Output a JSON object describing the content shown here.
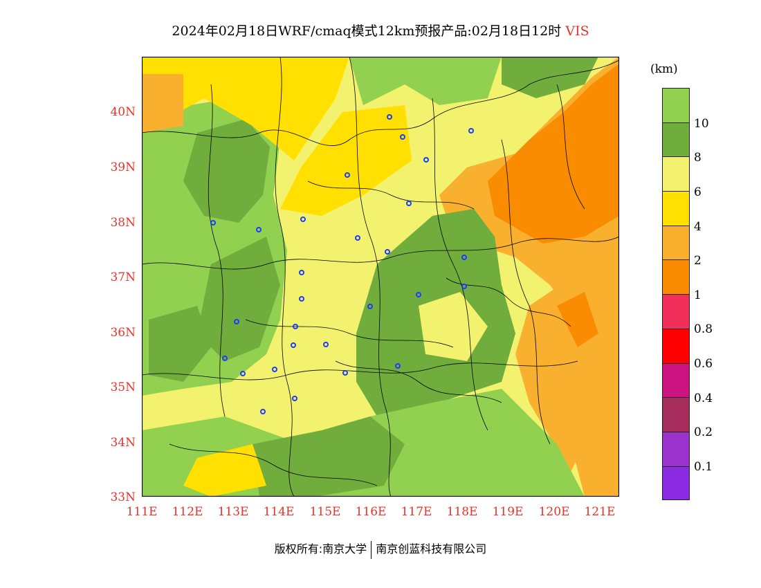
{
  "title": {
    "main": "2024年02月18日WRF/cmaq模式12km预报产品:02月18日12时",
    "variable": "VIS"
  },
  "map": {
    "lat_labels": [
      "40N",
      "39N",
      "38N",
      "37N",
      "36N",
      "35N",
      "34N",
      "33N"
    ],
    "lon_labels": [
      "111E",
      "112E",
      "113E",
      "114E",
      "115E",
      "116E",
      "117E",
      "118E",
      "119E",
      "120E",
      "121E"
    ],
    "colors": {
      "light_green": "#92d050",
      "dark_green": "#70ad3c",
      "pale_yellow": "#f2f26e",
      "yellow": "#ffe000",
      "light_orange": "#f9b02e",
      "orange": "#f98c00",
      "pink_red": "#f0305a",
      "red": "#ff0000",
      "magenta": "#cc1480",
      "maroon": "#a62c5c",
      "purple": "#9933cc",
      "violet": "#8a2be2",
      "city_marker": "#1a3cff",
      "boundary": "#000000"
    }
  },
  "legend": {
    "unit": "(km)",
    "labels": [
      "10",
      "8",
      "6",
      "4",
      "2",
      "1",
      "0.8",
      "0.6",
      "0.4",
      "0.2",
      "0.1"
    ],
    "bins": [
      {
        "color": "#92d050"
      },
      {
        "color": "#70ad3c"
      },
      {
        "color": "#f2f26e"
      },
      {
        "color": "#ffe000"
      },
      {
        "color": "#f9b02e"
      },
      {
        "color": "#f98c00"
      },
      {
        "color": "#f0305a"
      },
      {
        "color": "#ff0000"
      },
      {
        "color": "#cc1480"
      },
      {
        "color": "#a62c5c"
      },
      {
        "color": "#9933cc"
      },
      {
        "color": "#8a2be2"
      }
    ]
  },
  "footer": {
    "left": "版权所有:南京大学",
    "right": "南京创蓝科技有限公司"
  }
}
